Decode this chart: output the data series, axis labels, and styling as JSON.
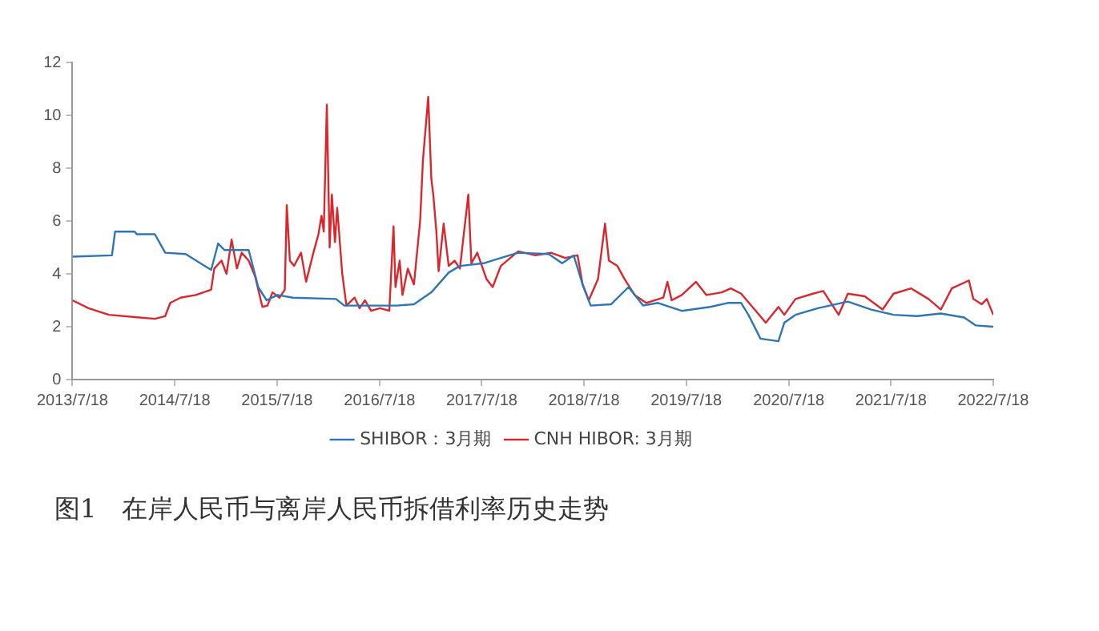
{
  "chart_data": {
    "type": "line",
    "title": "图1　在岸人民币与离岸人民币拆借利率历史走势",
    "xlim": [
      "2013-07-18",
      "2022-07-18"
    ],
    "xticks": [
      {
        "value": "2013-07-18",
        "label": "2013/7/18"
      },
      {
        "value": "2014-07-18",
        "label": "2014/7/18"
      },
      {
        "value": "2015-07-18",
        "label": "2015/7/18"
      },
      {
        "value": "2016-07-18",
        "label": "2016/7/18"
      },
      {
        "value": "2017-07-18",
        "label": "2017/7/18"
      },
      {
        "value": "2018-07-18",
        "label": "2018/7/18"
      },
      {
        "value": "2019-07-18",
        "label": "2019/7/18"
      },
      {
        "value": "2020-07-18",
        "label": "2020/7/18"
      },
      {
        "value": "2021-07-18",
        "label": "2021/7/18"
      },
      {
        "value": "2022-07-18",
        "label": "2022/7/18"
      }
    ],
    "ylim": [
      0,
      12
    ],
    "yticks": [
      0,
      2,
      4,
      6,
      8,
      10,
      12
    ],
    "grid": false,
    "legend": "bottom",
    "marker": "none",
    "line_style": "solid",
    "series": [
      {
        "name": "SHIBOR：3月期",
        "color": "#2e75b6",
        "x": [
          "2013-07-18",
          "2013-12-06",
          "2013-12-17",
          "2014-02-25",
          "2014-03-04",
          "2014-05-08",
          "2014-06-14",
          "2014-08-26",
          "2014-11-25",
          "2014-12-20",
          "2015-01-12",
          "2015-04-08",
          "2015-05-12",
          "2015-06-11",
          "2015-07-20",
          "2015-09-13",
          "2016-02-14",
          "2016-03-14",
          "2016-09-17",
          "2016-11-18",
          "2017-01-19",
          "2017-03-22",
          "2017-05-01",
          "2017-07-24",
          "2017-09-24",
          "2017-11-25",
          "2018-03-14",
          "2018-05-01",
          "2018-06-11",
          "2018-07-13",
          "2018-08-11",
          "2018-10-23",
          "2018-12-24",
          "2019-02-14",
          "2019-04-08",
          "2019-07-02",
          "2019-10-12",
          "2019-12-13",
          "2020-01-30",
          "2020-02-25",
          "2020-04-08",
          "2020-06-11",
          "2020-07-02",
          "2020-08-11",
          "2020-10-30",
          "2021-02-14",
          "2021-05-08",
          "2021-07-27",
          "2021-10-19",
          "2022-01-12",
          "2022-04-05",
          "2022-05-16",
          "2022-07-18"
        ],
        "values": [
          4.65,
          4.7,
          5.6,
          5.6,
          5.5,
          5.5,
          4.8,
          4.75,
          4.15,
          5.15,
          4.9,
          4.9,
          3.5,
          3.0,
          3.2,
          3.1,
          3.05,
          2.8,
          2.8,
          2.85,
          3.3,
          4.05,
          4.3,
          4.4,
          4.6,
          4.8,
          4.75,
          4.4,
          4.7,
          3.6,
          2.8,
          2.85,
          3.5,
          2.8,
          2.9,
          2.6,
          2.75,
          2.9,
          2.9,
          2.45,
          1.55,
          1.45,
          2.15,
          2.45,
          2.7,
          2.95,
          2.65,
          2.45,
          2.4,
          2.5,
          2.35,
          2.05,
          2.0
        ]
      },
      {
        "name": "CNH HIBOR: 3月期",
        "color": "#d9272e",
        "x": [
          "2013-07-18",
          "2013-09-13",
          "2013-11-25",
          "2014-03-14",
          "2014-05-08",
          "2014-06-14",
          "2014-07-02",
          "2014-08-08",
          "2014-10-01",
          "2014-11-25",
          "2014-12-06",
          "2015-01-01",
          "2015-01-19",
          "2015-02-06",
          "2015-02-25",
          "2015-03-14",
          "2015-04-08",
          "2015-05-01",
          "2015-05-27",
          "2015-06-14",
          "2015-07-02",
          "2015-07-27",
          "2015-08-15",
          "2015-08-22",
          "2015-09-02",
          "2015-09-17",
          "2015-10-12",
          "2015-10-30",
          "2015-11-25",
          "2015-12-13",
          "2015-12-24",
          "2016-01-01",
          "2016-01-12",
          "2016-01-22",
          "2016-01-30",
          "2016-02-10",
          "2016-02-18",
          "2016-03-07",
          "2016-03-22",
          "2016-04-20",
          "2016-05-08",
          "2016-05-27",
          "2016-06-18",
          "2016-07-20",
          "2016-08-22",
          "2016-09-06",
          "2016-09-13",
          "2016-09-28",
          "2016-10-08",
          "2016-10-27",
          "2016-11-18",
          "2016-12-10",
          "2016-12-20",
          "2017-01-08",
          "2017-01-19",
          "2017-01-26",
          "2017-02-06",
          "2017-02-14",
          "2017-03-04",
          "2017-03-22",
          "2017-04-12",
          "2017-05-01",
          "2017-05-31",
          "2017-06-11",
          "2017-07-02",
          "2017-08-04",
          "2017-08-26",
          "2017-09-24",
          "2017-11-25",
          "2018-01-26",
          "2018-03-22",
          "2018-05-12",
          "2018-06-25",
          "2018-07-13",
          "2018-08-04",
          "2018-09-06",
          "2018-10-01",
          "2018-10-15",
          "2018-11-14",
          "2018-12-10",
          "2019-01-15",
          "2019-02-25",
          "2019-04-27",
          "2019-05-12",
          "2019-05-27",
          "2019-07-02",
          "2019-08-22",
          "2019-09-28",
          "2019-11-22",
          "2019-12-24",
          "2020-01-30",
          "2020-03-18",
          "2020-04-27",
          "2020-06-11",
          "2020-07-02",
          "2020-08-11",
          "2020-10-12",
          "2020-11-18",
          "2021-01-12",
          "2021-02-14",
          "2021-04-15",
          "2021-06-18",
          "2021-07-27",
          "2021-09-28",
          "2021-11-29",
          "2022-01-12",
          "2022-02-20",
          "2022-04-22",
          "2022-05-08",
          "2022-06-07",
          "2022-06-25",
          "2022-07-18"
        ],
        "values": [
          3.0,
          2.7,
          2.45,
          2.35,
          2.3,
          2.4,
          2.9,
          3.1,
          3.2,
          3.4,
          4.2,
          4.5,
          4.0,
          5.3,
          4.2,
          4.8,
          4.5,
          3.9,
          2.75,
          2.8,
          3.3,
          3.1,
          3.4,
          6.6,
          4.5,
          4.3,
          4.8,
          3.7,
          4.8,
          5.5,
          6.2,
          5.6,
          10.4,
          5.0,
          7.0,
          5.2,
          6.5,
          4.0,
          2.8,
          3.1,
          2.7,
          3.0,
          2.6,
          2.7,
          2.6,
          5.8,
          3.5,
          4.5,
          3.2,
          4.2,
          3.6,
          6.0,
          8.3,
          10.7,
          7.6,
          7.0,
          5.6,
          4.1,
          5.9,
          4.3,
          4.5,
          4.2,
          7.0,
          4.4,
          4.8,
          3.8,
          3.5,
          4.3,
          4.85,
          4.7,
          4.8,
          4.6,
          4.7,
          3.6,
          3.0,
          3.8,
          5.9,
          4.5,
          4.3,
          3.8,
          3.2,
          2.9,
          3.1,
          3.7,
          3.0,
          3.2,
          3.7,
          3.2,
          3.3,
          3.45,
          3.25,
          2.65,
          2.15,
          2.75,
          2.45,
          3.05,
          3.25,
          3.35,
          2.45,
          3.25,
          3.15,
          2.65,
          3.25,
          3.45,
          3.05,
          2.65,
          3.45,
          3.75,
          3.05,
          2.85,
          3.05,
          2.45
        ]
      }
    ]
  }
}
